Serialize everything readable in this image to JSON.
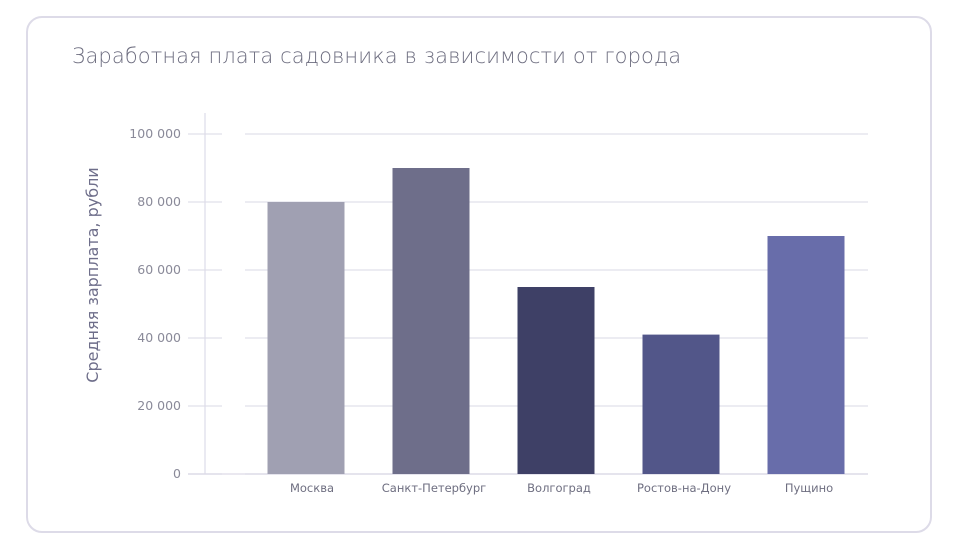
{
  "chart_data": {
    "type": "bar",
    "title": "Заработная плата садовника в зависимости от города",
    "xlabel": "",
    "ylabel": "Средняя зарплата, рубли",
    "categories": [
      "Москва",
      "Санкт-Петербург",
      "Волгоград",
      "Ростов-на-Дону",
      "Пущино"
    ],
    "values": [
      80000,
      90000,
      55000,
      41000,
      70000
    ],
    "colors": [
      "#a0a0b2",
      "#6e6e8a",
      "#3e4066",
      "#525689",
      "#686daa"
    ],
    "ylim": [
      0,
      100000
    ],
    "yticks": [
      0,
      20000,
      40000,
      60000,
      80000,
      100000
    ],
    "ytick_labels": [
      "0",
      "20 000",
      "40 000",
      "60 000",
      "80 000",
      "100 000"
    ],
    "grid": true,
    "legend": "none"
  }
}
